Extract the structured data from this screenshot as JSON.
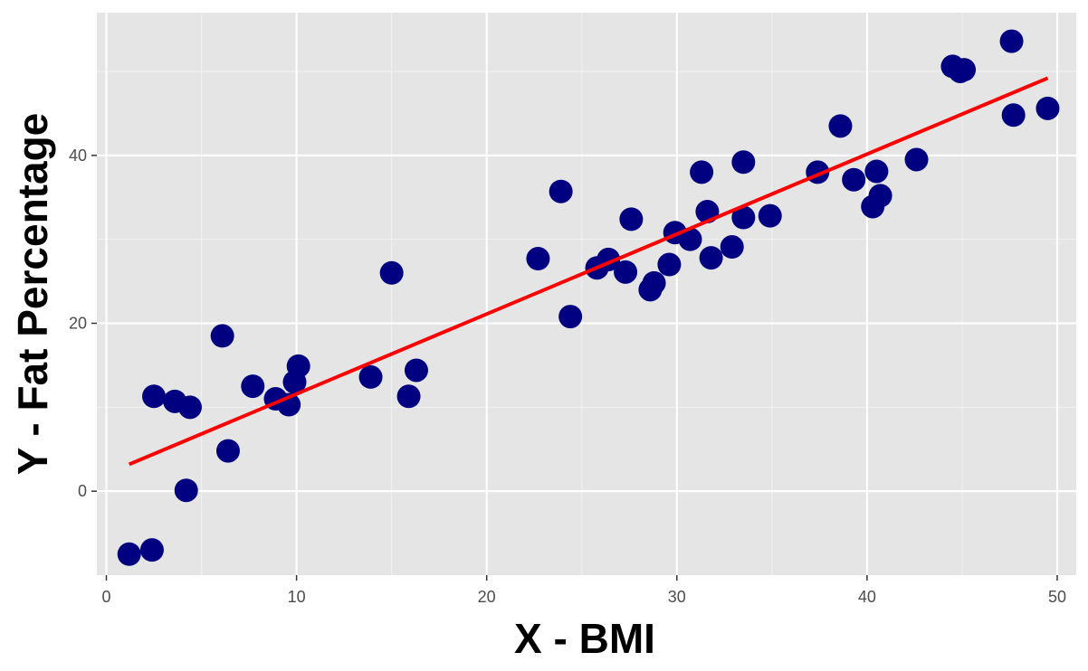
{
  "colors": {
    "panel_background": "#e5e5e5",
    "grid_major": "#ffffff",
    "grid_minor": "#f2f2f2",
    "point_fill": "#000080",
    "fit_line": "#ff0000",
    "tick_label": "#4d4d4d",
    "tick_mark": "#333333",
    "axis_title": "#000000"
  },
  "chart_data": {
    "type": "scatter",
    "title": "",
    "xlabel": "X - BMI",
    "ylabel": "Y - Fat Percentage",
    "xlim": [
      -0.5,
      51
    ],
    "ylim": [
      -10,
      57
    ],
    "x_ticks": [
      0,
      10,
      20,
      30,
      40,
      50
    ],
    "y_ticks": [
      0,
      20,
      40
    ],
    "grid": true,
    "legend": "none",
    "series": [
      {
        "marker": "filled-circle",
        "points": [
          [
            1.2,
            -7.5
          ],
          [
            2.4,
            -7.0
          ],
          [
            2.5,
            11.3
          ],
          [
            3.6,
            10.7
          ],
          [
            4.2,
            0.1
          ],
          [
            4.4,
            10.0
          ],
          [
            6.1,
            18.5
          ],
          [
            6.4,
            4.8
          ],
          [
            7.7,
            12.5
          ],
          [
            8.9,
            11.0
          ],
          [
            9.6,
            10.3
          ],
          [
            9.9,
            13.0
          ],
          [
            10.1,
            14.9
          ],
          [
            13.9,
            13.6
          ],
          [
            15.0,
            26.0
          ],
          [
            15.9,
            11.3
          ],
          [
            16.3,
            14.4
          ],
          [
            22.7,
            27.7
          ],
          [
            23.9,
            35.7
          ],
          [
            24.4,
            20.8
          ],
          [
            25.8,
            26.6
          ],
          [
            26.4,
            27.6
          ],
          [
            27.3,
            26.1
          ],
          [
            27.6,
            32.4
          ],
          [
            28.6,
            24.0
          ],
          [
            28.8,
            24.8
          ],
          [
            29.6,
            27.0
          ],
          [
            29.9,
            30.8
          ],
          [
            30.7,
            30.0
          ],
          [
            31.3,
            38.0
          ],
          [
            31.6,
            33.3
          ],
          [
            31.8,
            27.8
          ],
          [
            32.9,
            29.1
          ],
          [
            33.5,
            39.2
          ],
          [
            33.5,
            32.6
          ],
          [
            34.9,
            32.8
          ],
          [
            37.4,
            38.0
          ],
          [
            38.6,
            43.5
          ],
          [
            39.3,
            37.1
          ],
          [
            40.3,
            33.9
          ],
          [
            40.5,
            38.1
          ],
          [
            40.7,
            35.2
          ],
          [
            42.6,
            39.5
          ],
          [
            44.5,
            50.6
          ],
          [
            44.9,
            50.0
          ],
          [
            45.1,
            50.2
          ],
          [
            47.6,
            53.6
          ],
          [
            47.7,
            44.8
          ],
          [
            49.5,
            45.6
          ]
        ]
      }
    ],
    "fit_line": {
      "x": [
        1.2,
        49.5
      ],
      "y": [
        3.2,
        49.2
      ]
    }
  }
}
